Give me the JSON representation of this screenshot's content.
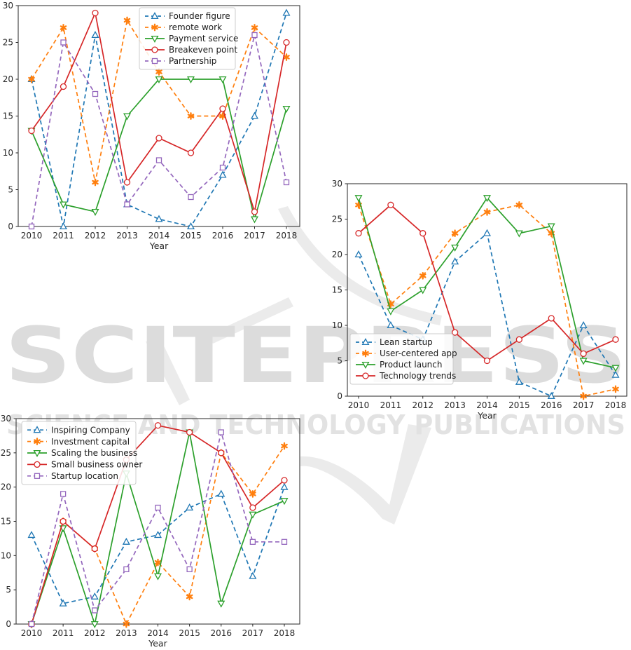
{
  "watermark": {
    "title": "SCITEPRESS",
    "subtitle": "SCIENCE AND TECHNOLOGY PUBLICATIONS",
    "title_color": "#dcdcdc",
    "subtitle_color": "#e2e2e2",
    "swoosh_color": "#ebebeb"
  },
  "palette": {
    "blue": "#1f77b4",
    "orange": "#ff7f0e",
    "green": "#2ca02c",
    "red": "#d62728",
    "purple": "#9467bd"
  },
  "chart_data": [
    {
      "type": "line",
      "title": "",
      "xlabel": "Year",
      "ylabel": "",
      "x": [
        2010,
        2011,
        2012,
        2013,
        2014,
        2015,
        2016,
        2017,
        2018
      ],
      "ylim": [
        0,
        30
      ],
      "yticks": [
        0,
        5,
        10,
        15,
        20,
        25,
        30
      ],
      "grid": false,
      "legend_position": "upper right inside",
      "series": [
        {
          "name": "Founder figure",
          "color": "#1f77b4",
          "dash": true,
          "marker": "triangle-up",
          "values": [
            20,
            0,
            26,
            3,
            1,
            0,
            7,
            15,
            29
          ]
        },
        {
          "name": "remote work",
          "color": "#ff7f0e",
          "dash": true,
          "marker": "asterisk",
          "values": [
            20,
            27,
            6,
            28,
            21,
            15,
            15,
            27,
            23
          ]
        },
        {
          "name": "Payment service",
          "color": "#2ca02c",
          "dash": false,
          "marker": "triangle-down",
          "values": [
            13,
            3,
            2,
            15,
            20,
            20,
            20,
            1,
            16
          ]
        },
        {
          "name": "Breakeven point",
          "color": "#d62728",
          "dash": false,
          "marker": "circle",
          "values": [
            13,
            19,
            29,
            6,
            12,
            10,
            16,
            2,
            25
          ]
        },
        {
          "name": "Partnership",
          "color": "#9467bd",
          "dash": true,
          "marker": "square",
          "values": [
            0,
            25,
            18,
            3,
            9,
            4,
            8,
            26,
            6
          ]
        }
      ]
    },
    {
      "type": "line",
      "title": "",
      "xlabel": "Year",
      "ylabel": "",
      "x": [
        2010,
        2011,
        2012,
        2013,
        2014,
        2015,
        2016,
        2017,
        2018
      ],
      "ylim": [
        0,
        30
      ],
      "yticks": [
        0,
        5,
        10,
        15,
        20,
        25,
        30
      ],
      "grid": false,
      "legend_position": "lower left inside",
      "series": [
        {
          "name": "Lean startup",
          "color": "#1f77b4",
          "dash": true,
          "marker": "triangle-up",
          "values": [
            20,
            10,
            8,
            19,
            23,
            2,
            0,
            10,
            3
          ]
        },
        {
          "name": "User-centered app",
          "color": "#ff7f0e",
          "dash": true,
          "marker": "asterisk",
          "values": [
            27,
            13,
            17,
            23,
            26,
            27,
            23,
            0,
            1
          ]
        },
        {
          "name": "Product launch",
          "color": "#2ca02c",
          "dash": false,
          "marker": "triangle-down",
          "values": [
            28,
            12,
            15,
            21,
            28,
            23,
            24,
            5,
            4
          ]
        },
        {
          "name": "Technology trends",
          "color": "#d62728",
          "dash": false,
          "marker": "circle",
          "values": [
            23,
            27,
            23,
            9,
            5,
            8,
            11,
            6,
            8
          ]
        }
      ]
    },
    {
      "type": "line",
      "title": "",
      "xlabel": "Year",
      "ylabel": "",
      "x": [
        2010,
        2011,
        2012,
        2013,
        2014,
        2015,
        2016,
        2017,
        2018
      ],
      "ylim": [
        0,
        30
      ],
      "yticks": [
        0,
        5,
        10,
        15,
        20,
        25,
        30
      ],
      "grid": false,
      "legend_position": "upper left inside",
      "series": [
        {
          "name": "Inspiring Company",
          "color": "#1f77b4",
          "dash": true,
          "marker": "triangle-up",
          "values": [
            13,
            3,
            4,
            12,
            13,
            17,
            19,
            7,
            20
          ]
        },
        {
          "name": "Investment capital",
          "color": "#ff7f0e",
          "dash": true,
          "marker": "asterisk",
          "values": [
            0,
            15,
            11,
            0,
            9,
            4,
            25,
            19,
            26
          ]
        },
        {
          "name": "Scaling the business",
          "color": "#2ca02c",
          "dash": false,
          "marker": "triangle-down",
          "values": [
            0,
            14,
            0,
            22,
            7,
            28,
            3,
            16,
            18
          ]
        },
        {
          "name": "Small business owner",
          "color": "#d62728",
          "dash": false,
          "marker": "circle",
          "values": [
            0,
            15,
            11,
            24,
            29,
            28,
            25,
            17,
            21
          ]
        },
        {
          "name": "Startup location",
          "color": "#9467bd",
          "dash": true,
          "marker": "square",
          "values": [
            0,
            19,
            2,
            8,
            17,
            8,
            28,
            12,
            12
          ]
        }
      ]
    }
  ]
}
